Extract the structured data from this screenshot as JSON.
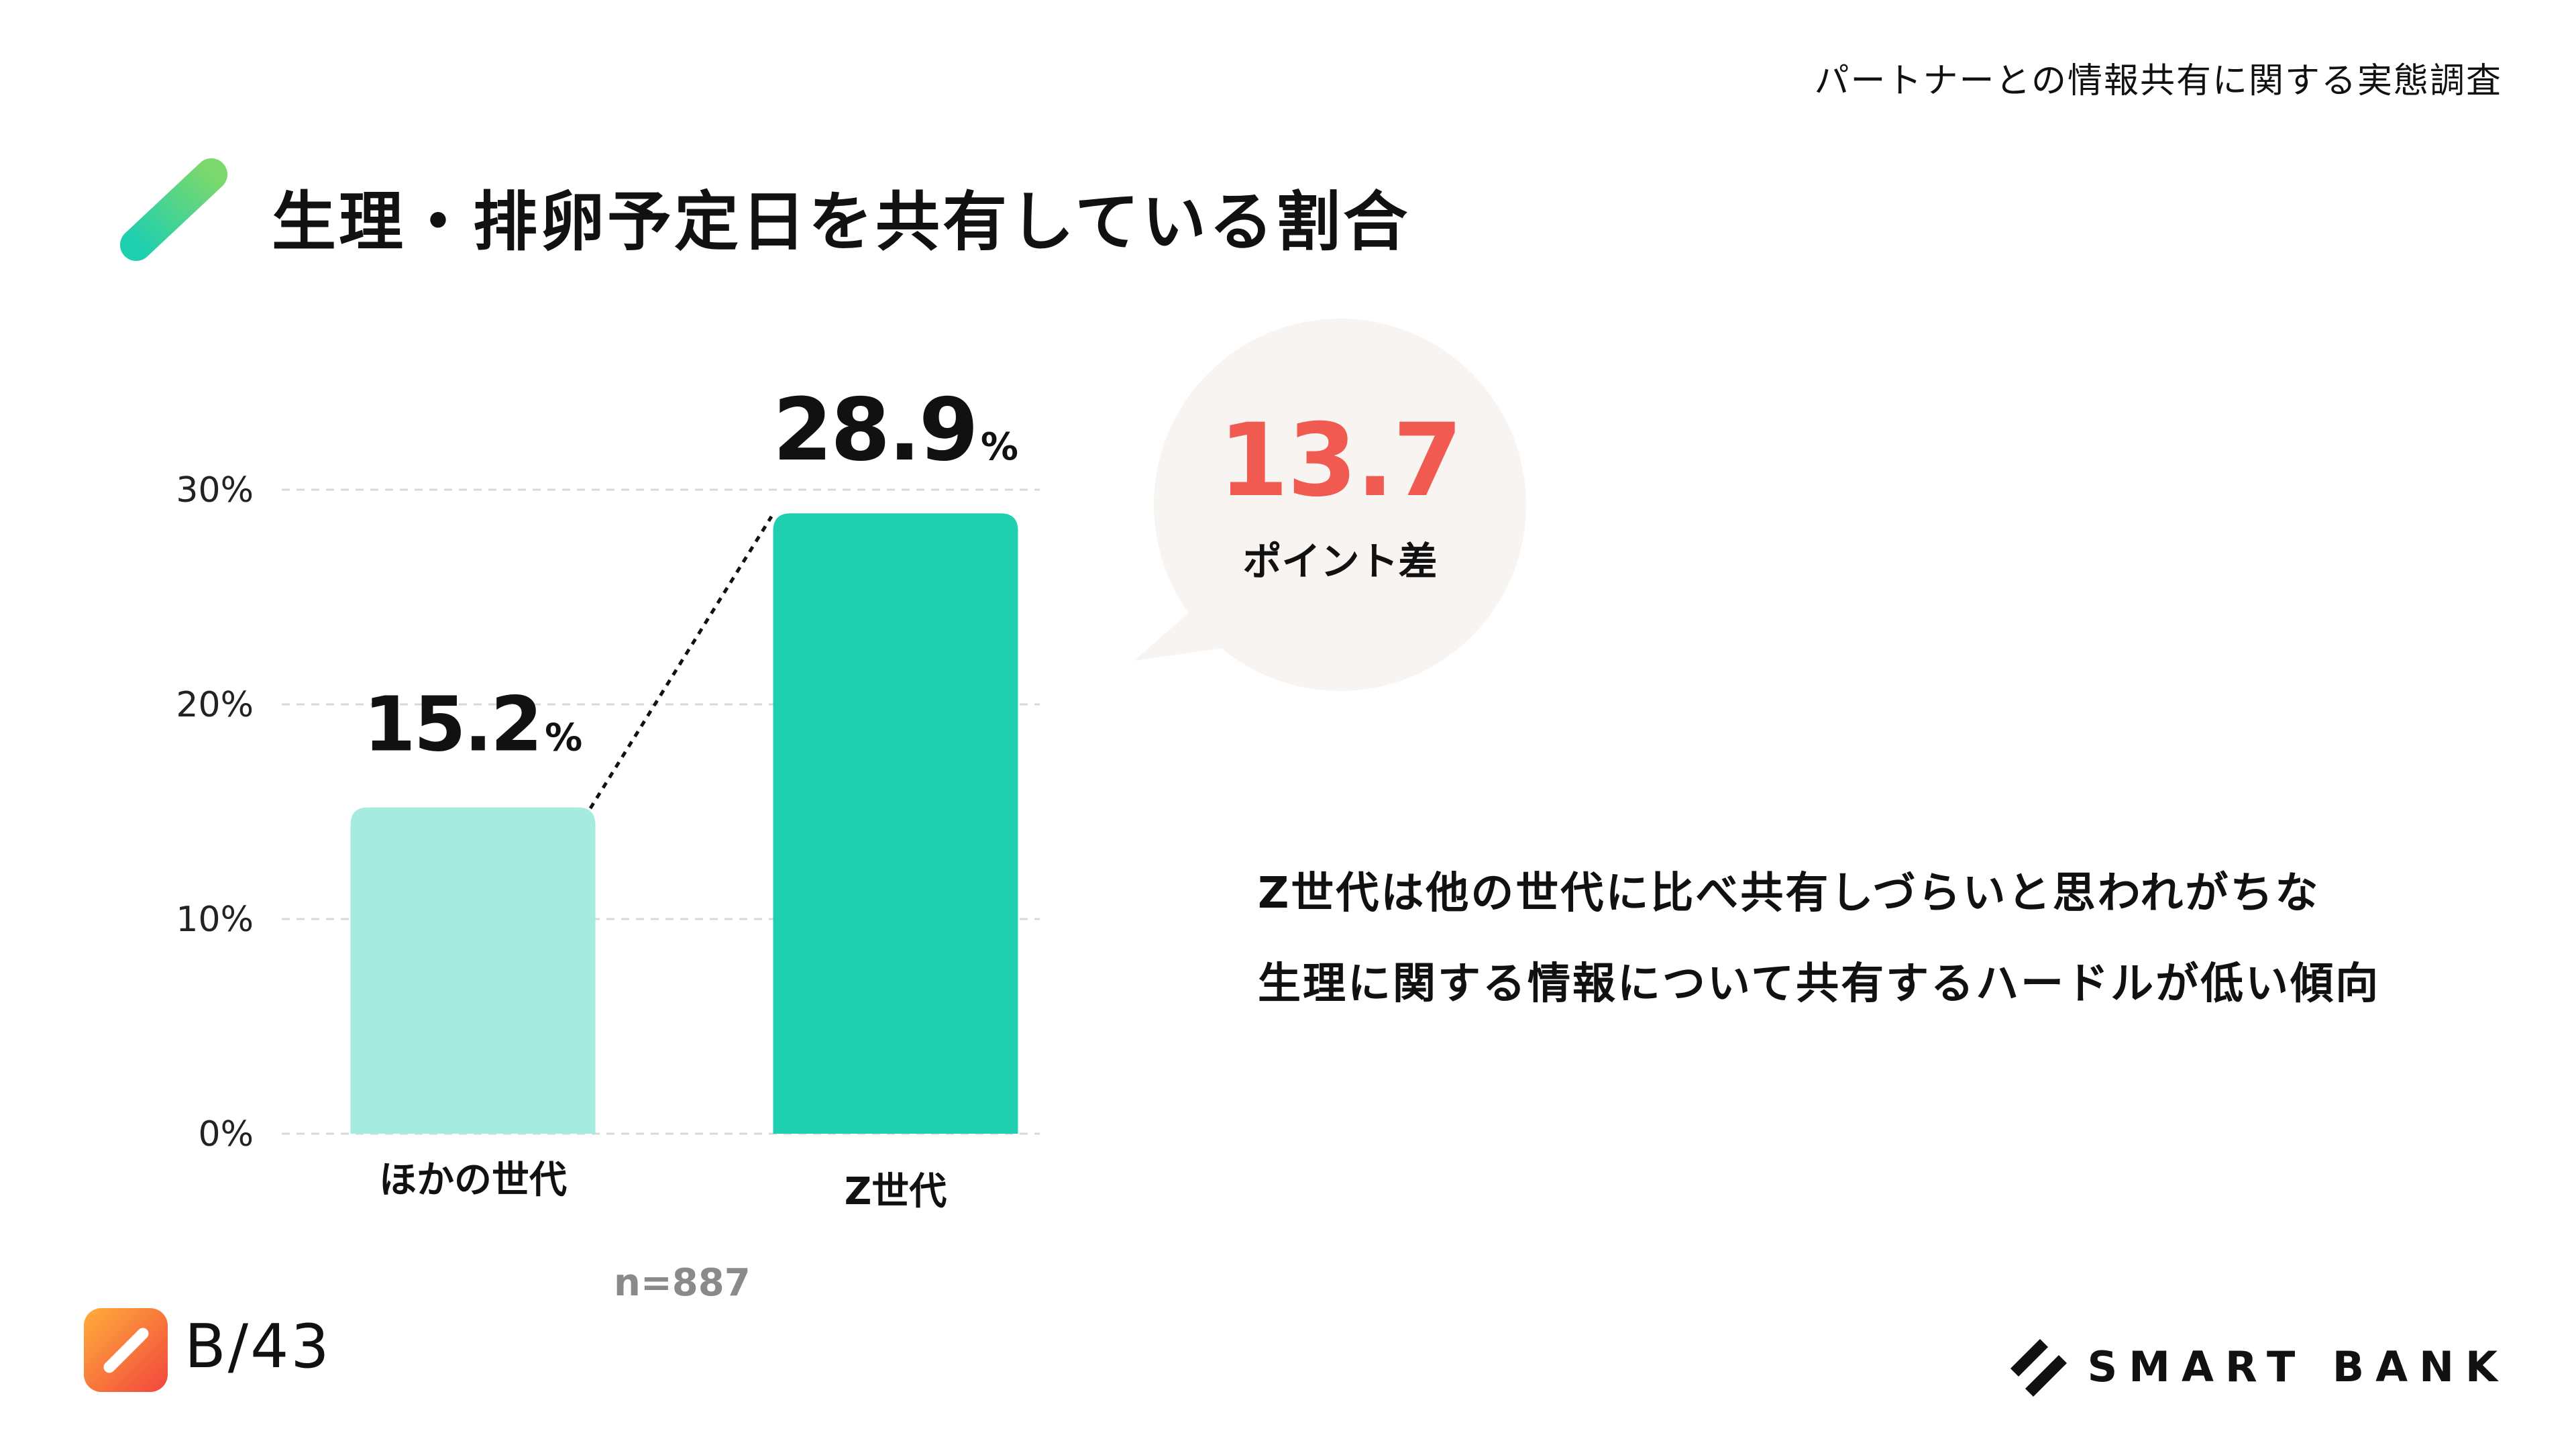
{
  "header": {
    "survey_label": "パートナーとの情報共有に関する実態調査"
  },
  "page": {
    "title": "生理・排卵予定日を共有している割合"
  },
  "chart_data": {
    "type": "bar",
    "categories": [
      "ほかの世代",
      "Z世代"
    ],
    "values": [
      15.2,
      28.9
    ],
    "value_labels": [
      "15.2",
      "28.9"
    ],
    "value_unit": "%",
    "y_ticks": [
      "0%",
      "10%",
      "20%",
      "30%"
    ],
    "ylim": [
      0,
      30
    ],
    "colors": [
      "#a5ebdf",
      "#1ecfb0"
    ],
    "grid": true,
    "sample_size": "n=887"
  },
  "callout": {
    "value": "13.7",
    "label": "ポイント差",
    "value_color": "#f15a50",
    "bg_color": "#f7f4f1"
  },
  "summary": {
    "lines": [
      "Z世代は他の世代に比べ共有しづらいと思われがちな",
      "生理に関する情報について共有するハードルが低い傾向"
    ]
  },
  "footer": {
    "page_number": "B/43",
    "brand_name": "SMART BANK"
  }
}
